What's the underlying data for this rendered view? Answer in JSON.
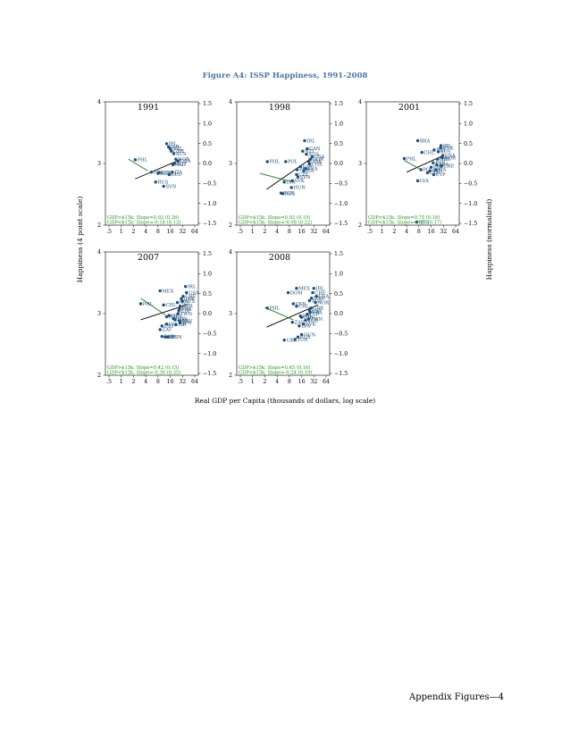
{
  "figure": {
    "title": "Figure A4: ISSP Happiness, 1991-2008",
    "xlabel": "Real GDP per Capita (thousands of dollars, log scale)",
    "ylabel_left": "Happiness (4 point scale)",
    "ylabel_right": "Happiness (normalized)"
  },
  "footer": "Appendix Figures—4",
  "colors": {
    "title": "#4a76a8",
    "points": "#1f4e79",
    "fit": "#000000",
    "lowfit": "#1a7a1a",
    "note": "#1a9c1a"
  },
  "chart_data": [
    {
      "type": "scatter",
      "title": "1991",
      "x_scale": "log",
      "xticks": [
        ".5",
        "1",
        "2",
        "4",
        "8",
        "16",
        "32",
        "64"
      ],
      "yticks_left": [
        "2",
        "3",
        "4"
      ],
      "yticks_right": [
        "1.5",
        "1.0",
        "0.5",
        "0.0",
        "−0.5",
        "−1.0",
        "−1.5"
      ],
      "xlim": [
        0.5,
        64
      ],
      "ylim": [
        2,
        4
      ],
      "notes": [
        "GDP>$15k: Slope=0.92 (0.26)",
        "GDP<$15k: Slope=-0.18 (0.13)"
      ],
      "points": [
        {
          "label": "PHL",
          "x": 2.2,
          "y": 3.06
        },
        {
          "label": "IRL",
          "x": 13.0,
          "y": 3.32
        },
        {
          "label": "ISR",
          "x": 14.5,
          "y": 3.27
        },
        {
          "label": "NZL",
          "x": 16.0,
          "y": 3.24
        },
        {
          "label": "GBR",
          "x": 17.0,
          "y": 3.2
        },
        {
          "label": "AUS",
          "x": 19.5,
          "y": 3.16
        },
        {
          "label": "NOR",
          "x": 22.0,
          "y": 3.07
        },
        {
          "label": "USA",
          "x": 25.0,
          "y": 3.04
        },
        {
          "label": "AUT",
          "x": 20.0,
          "y": 3.0
        },
        {
          "label": "NLD",
          "x": 18.5,
          "y": 2.98
        },
        {
          "label": "ITA",
          "x": 18.0,
          "y": 2.86
        },
        {
          "label": "POL",
          "x": 5.5,
          "y": 2.86
        },
        {
          "label": "CZE",
          "x": 8.5,
          "y": 2.85
        },
        {
          "label": "HUN",
          "x": 8.0,
          "y": 2.84
        },
        {
          "label": "DEU",
          "x": 15.0,
          "y": 2.82
        },
        {
          "label": "RUS",
          "x": 7.0,
          "y": 2.7
        },
        {
          "label": "SVN",
          "x": 11.0,
          "y": 2.63
        }
      ],
      "fit_high": {
        "x": [
          2.2,
          30
        ],
        "y": [
          2.75,
          3.07
        ]
      },
      "fit_low": {
        "x": [
          1.5,
          4.5
        ],
        "y": [
          3.07,
          2.88
        ]
      }
    },
    {
      "type": "scatter",
      "title": "1998",
      "x_scale": "log",
      "xticks": [
        ".5",
        "1",
        "2",
        "4",
        "8",
        "16",
        "32",
        "64"
      ],
      "yticks_left": [
        "2",
        "3",
        "4"
      ],
      "yticks_right": [
        "1.5",
        "1.0",
        "0.5",
        "0.0",
        "−0.5",
        "−1.0",
        "−1.5"
      ],
      "xlim": [
        0.5,
        64
      ],
      "ylim": [
        2,
        4
      ],
      "notes": [
        "GDP>$15k: Slope=0.92 (0.19)",
        "GDP<$15k: Slope=-0.08 (0.22)"
      ],
      "points": [
        {
          "label": "PHL",
          "x": 2.3,
          "y": 3.03
        },
        {
          "label": "POL",
          "x": 6.5,
          "y": 3.03
        },
        {
          "label": "IRL",
          "x": 19.0,
          "y": 3.37
        },
        {
          "label": "CAN",
          "x": 22.0,
          "y": 3.24
        },
        {
          "label": "NZL",
          "x": 17.0,
          "y": 3.2
        },
        {
          "label": "AUS",
          "x": 21.0,
          "y": 3.15
        },
        {
          "label": "NOR",
          "x": 26.0,
          "y": 3.07
        },
        {
          "label": "USA",
          "x": 29.0,
          "y": 3.11
        },
        {
          "label": "DNK",
          "x": 24.0,
          "y": 3.03
        },
        {
          "label": "CHE",
          "x": 25.0,
          "y": 2.99
        },
        {
          "label": "ESP",
          "x": 15.0,
          "y": 2.95
        },
        {
          "label": "FRA",
          "x": 20.0,
          "y": 2.92
        },
        {
          "label": "PRT",
          "x": 12.5,
          "y": 2.9
        },
        {
          "label": "ITA",
          "x": 18.0,
          "y": 2.88
        },
        {
          "label": "CZE",
          "x": 12.0,
          "y": 2.82
        },
        {
          "label": "SVN",
          "x": 13.0,
          "y": 2.78
        },
        {
          "label": "SVK",
          "x": 9.5,
          "y": 2.72
        },
        {
          "label": "LVA",
          "x": 6.0,
          "y": 2.7
        },
        {
          "label": "HUN",
          "x": 9.0,
          "y": 2.61
        },
        {
          "label": "BGR",
          "x": 5.0,
          "y": 2.52
        },
        {
          "label": "RUS",
          "x": 5.5,
          "y": 2.51
        }
      ],
      "fit_high": {
        "x": [
          2.2,
          30
        ],
        "y": [
          2.58,
          3.1
        ]
      },
      "fit_low": {
        "x": [
          1.5,
          10
        ],
        "y": [
          2.84,
          2.7
        ]
      }
    },
    {
      "type": "scatter",
      "title": "2001",
      "x_scale": "log",
      "xticks": [
        ".5",
        "1",
        "2",
        "4",
        "8",
        "16",
        "32",
        "64"
      ],
      "yticks_left": [
        "2",
        "3",
        "4"
      ],
      "yticks_right": [
        "1.5",
        "1.0",
        "0.5",
        "0.0",
        "−0.5",
        "−1.0",
        "−1.5"
      ],
      "xlim": [
        0.5,
        64
      ],
      "ylim": [
        2,
        4
      ],
      "notes": [
        "GDP>$15k: Slope=0.75 (0.16)",
        "GDP<$15k: Slope=-0.25 (0.17)"
      ],
      "points": [
        {
          "label": "BRA",
          "x": 7.5,
          "y": 3.37
        },
        {
          "label": "PHL",
          "x": 3.5,
          "y": 3.08
        },
        {
          "label": "CHL",
          "x": 9.5,
          "y": 3.18
        },
        {
          "label": "IRL",
          "x": 28.0,
          "y": 3.29
        },
        {
          "label": "DNK",
          "x": 27.0,
          "y": 3.25
        },
        {
          "label": "NZL",
          "x": 19.0,
          "y": 3.22
        },
        {
          "label": "AUS",
          "x": 24.0,
          "y": 3.19
        },
        {
          "label": "USA",
          "x": 31.0,
          "y": 3.13
        },
        {
          "label": "NOR",
          "x": 30.0,
          "y": 3.09
        },
        {
          "label": "GBR",
          "x": 23.0,
          "y": 3.07
        },
        {
          "label": "ESP",
          "x": 18.0,
          "y": 3.01
        },
        {
          "label": "FRA",
          "x": 22.0,
          "y": 2.98
        },
        {
          "label": "CHE",
          "x": 28.5,
          "y": 2.96
        },
        {
          "label": "PRT",
          "x": 16.0,
          "y": 2.94
        },
        {
          "label": "POL",
          "x": 9.0,
          "y": 2.9
        },
        {
          "label": "ITA",
          "x": 21.0,
          "y": 2.9
        },
        {
          "label": "SVN",
          "x": 15.0,
          "y": 2.88
        },
        {
          "label": "CZE",
          "x": 13.0,
          "y": 2.85
        },
        {
          "label": "CYP",
          "x": 18.5,
          "y": 2.82
        },
        {
          "label": "LVA",
          "x": 7.5,
          "y": 2.72
        },
        {
          "label": "RUS",
          "x": 7.0,
          "y": 2.05
        }
      ],
      "fit_high": {
        "x": [
          4.0,
          32
        ],
        "y": [
          2.86,
          3.13
        ]
      },
      "fit_low": {
        "x": [
          3.5,
          9
        ],
        "y": [
          3.05,
          2.9
        ]
      }
    },
    {
      "type": "scatter",
      "title": "2007",
      "x_scale": "log",
      "xticks": [
        ".5",
        "1",
        "2",
        "4",
        "8",
        "16",
        "32",
        "64"
      ],
      "yticks_left": [
        "2",
        "3",
        "4"
      ],
      "yticks_right": [
        "1.5",
        "1.0",
        "0.5",
        "0.0",
        "−0.5",
        "−1.0",
        "−1.5"
      ],
      "xlim": [
        0.5,
        64
      ],
      "ylim": [
        2,
        4
      ],
      "notes": [
        "GDP>$15k: Slope=0.42 (0.15)",
        "GDP<$15k: Slope=-0.36 (0.35)"
      ],
      "points": [
        {
          "label": "MEX",
          "x": 9.0,
          "y": 3.37
        },
        {
          "label": "PHL",
          "x": 3.0,
          "y": 3.16
        },
        {
          "label": "IRL",
          "x": 38.0,
          "y": 3.44
        },
        {
          "label": "USA",
          "x": 40.0,
          "y": 3.34
        },
        {
          "label": "CHE",
          "x": 33.0,
          "y": 3.28
        },
        {
          "label": "DNK",
          "x": 30.0,
          "y": 3.24
        },
        {
          "label": "AUS",
          "x": 32.0,
          "y": 3.2
        },
        {
          "label": "NZL",
          "x": 24.0,
          "y": 3.18
        },
        {
          "label": "CHL",
          "x": 11.0,
          "y": 3.14
        },
        {
          "label": "GBR",
          "x": 28.0,
          "y": 3.12
        },
        {
          "label": "FRA",
          "x": 27.0,
          "y": 3.08
        },
        {
          "label": "ESP",
          "x": 26.0,
          "y": 3.05
        },
        {
          "label": "TWN",
          "x": 25.0,
          "y": 3.0
        },
        {
          "label": "HRV",
          "x": 15.0,
          "y": 2.97
        },
        {
          "label": "POL",
          "x": 13.0,
          "y": 2.95
        },
        {
          "label": "CZE",
          "x": 19.0,
          "y": 2.92
        },
        {
          "label": "KOR",
          "x": 21.0,
          "y": 2.9
        },
        {
          "label": "DEU",
          "x": 27.0,
          "y": 2.88
        },
        {
          "label": "JPN",
          "x": 28.0,
          "y": 2.85
        },
        {
          "label": "LVA",
          "x": 13.0,
          "y": 2.83
        },
        {
          "label": "ISR",
          "x": 22.0,
          "y": 2.82
        },
        {
          "label": "URY",
          "x": 10.0,
          "y": 2.8
        },
        {
          "label": "ZAF",
          "x": 9.0,
          "y": 2.74
        },
        {
          "label": "BGR",
          "x": 10.0,
          "y": 2.63
        },
        {
          "label": "RUS",
          "x": 12.0,
          "y": 2.62
        },
        {
          "label": "HUN",
          "x": 14.0,
          "y": 2.62
        }
      ],
      "fit_high": {
        "x": [
          3.0,
          40
        ],
        "y": [
          2.9,
          3.14
        ]
      },
      "fit_low": {
        "x": [
          3.0,
          12
        ],
        "y": [
          3.25,
          2.98
        ]
      }
    },
    {
      "type": "scatter",
      "title": "2008",
      "x_scale": "log",
      "xticks": [
        ".5",
        "1",
        "2",
        "4",
        "8",
        "16",
        "32",
        "64"
      ],
      "yticks_left": [
        "2",
        "3",
        "4"
      ],
      "yticks_right": [
        "1.5",
        "1.0",
        "0.5",
        "0.0",
        "−0.5",
        "−1.0",
        "−1.5"
      ],
      "xlim": [
        0.5,
        64
      ],
      "ylim": [
        2,
        4
      ],
      "notes": [
        "GDP>$15k: Slope=0.45 (0.16)",
        "GDP<$15k: Slope=-0.24 (0.19)"
      ],
      "points": [
        {
          "label": "PHL",
          "x": 2.3,
          "y": 3.09
        },
        {
          "label": "MEX",
          "x": 12.0,
          "y": 3.41
        },
        {
          "label": "IRL",
          "x": 32.0,
          "y": 3.41
        },
        {
          "label": "DOM",
          "x": 7.5,
          "y": 3.34
        },
        {
          "label": "CHE",
          "x": 30.0,
          "y": 3.34
        },
        {
          "label": "USA",
          "x": 37.0,
          "y": 3.28
        },
        {
          "label": "DNK",
          "x": 28.0,
          "y": 3.25
        },
        {
          "label": "AUS",
          "x": 25.0,
          "y": 3.21
        },
        {
          "label": "NOR",
          "x": 35.0,
          "y": 3.18
        },
        {
          "label": "VEN",
          "x": 10.0,
          "y": 3.16
        },
        {
          "label": "CHL",
          "x": 12.0,
          "y": 3.12
        },
        {
          "label": "GBR",
          "x": 27.0,
          "y": 3.09
        },
        {
          "label": "ESP",
          "x": 25.0,
          "y": 3.05
        },
        {
          "label": "FRA",
          "x": 26.0,
          "y": 3.02
        },
        {
          "label": "CYP",
          "x": 22.0,
          "y": 2.99
        },
        {
          "label": "POL",
          "x": 15.0,
          "y": 2.96
        },
        {
          "label": "HRV",
          "x": 16.0,
          "y": 2.94
        },
        {
          "label": "TWN",
          "x": 24.0,
          "y": 2.91
        },
        {
          "label": "KOR",
          "x": 20.0,
          "y": 2.89
        },
        {
          "label": "ZAF",
          "x": 9.5,
          "y": 2.86
        },
        {
          "label": "SVK",
          "x": 18.0,
          "y": 2.83
        },
        {
          "label": "LVA",
          "x": 14.0,
          "y": 2.8
        },
        {
          "label": "HUN",
          "x": 16.0,
          "y": 2.66
        },
        {
          "label": "RUS",
          "x": 13.0,
          "y": 2.62
        },
        {
          "label": "UKR",
          "x": 6.0,
          "y": 2.57
        },
        {
          "label": "TUR",
          "x": 11.0,
          "y": 2.58
        }
      ],
      "fit_high": {
        "x": [
          2.2,
          40
        ],
        "y": [
          2.78,
          3.14
        ]
      },
      "fit_low": {
        "x": [
          2.0,
          10
        ],
        "y": [
          3.1,
          2.9
        ]
      }
    }
  ]
}
